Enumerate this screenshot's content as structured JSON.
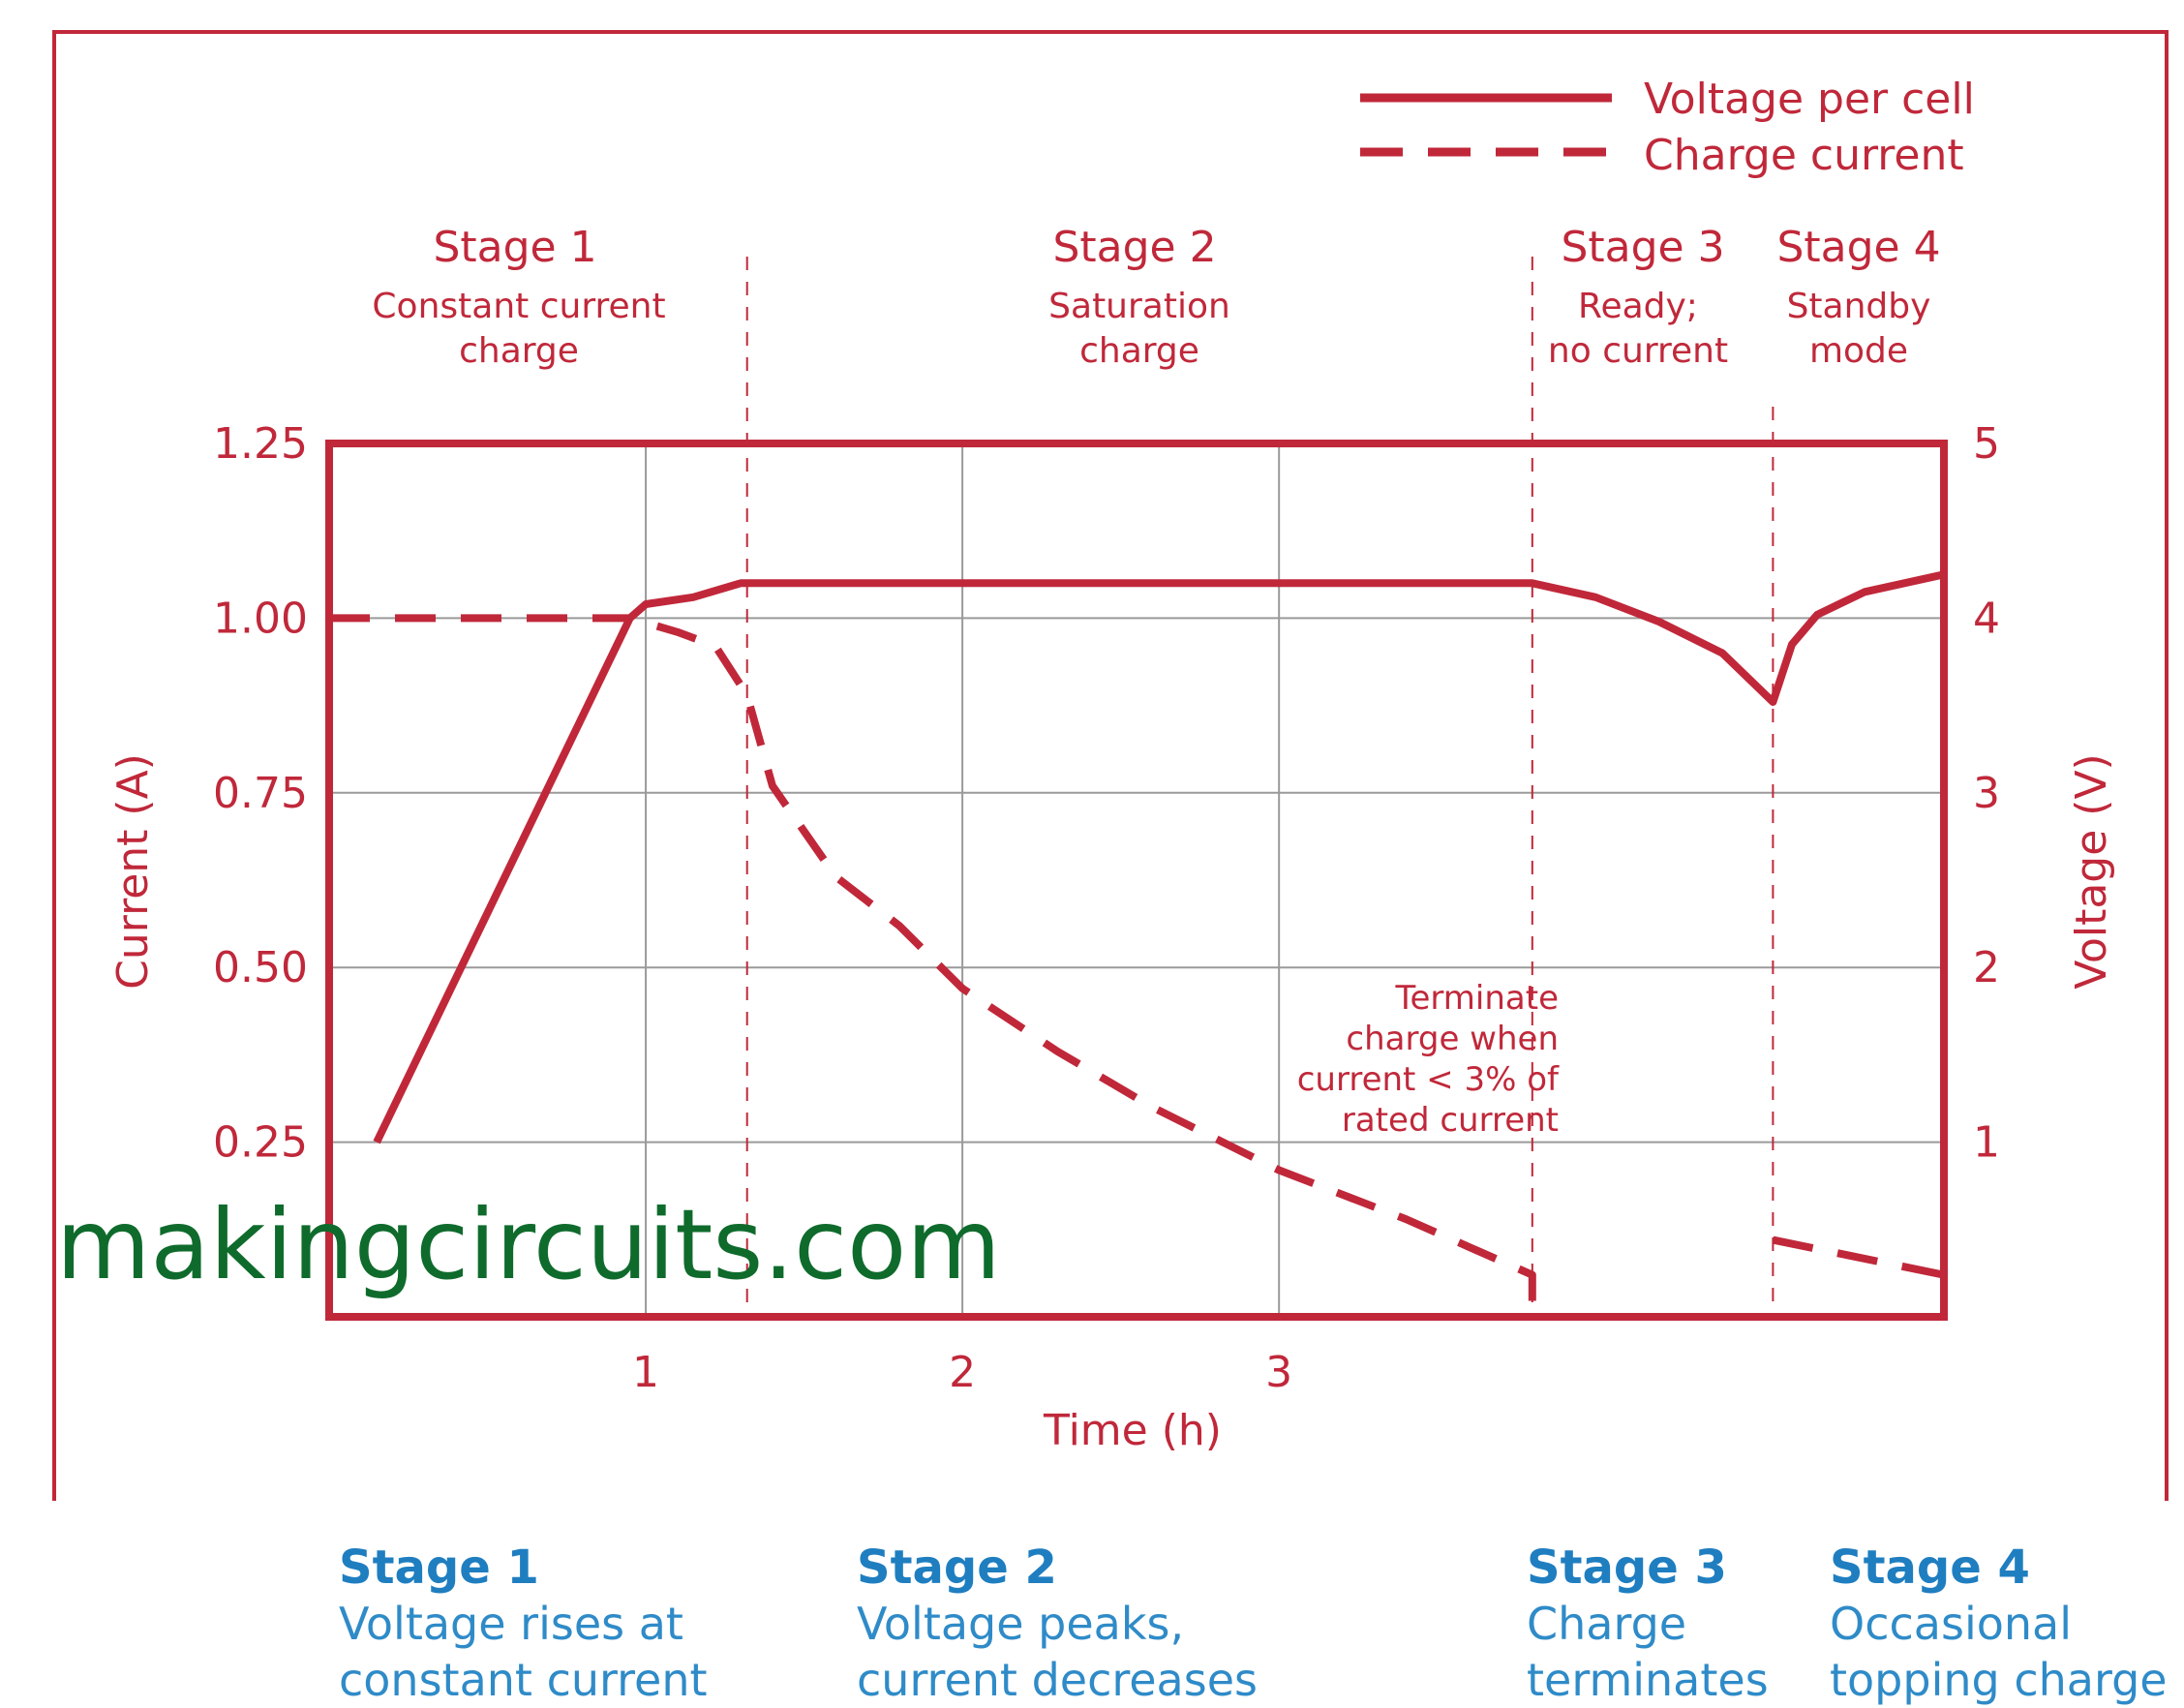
{
  "chart_data": {
    "type": "line",
    "title": "",
    "xlabel": "Time (h)",
    "ylabel_left": "Current (A)",
    "ylabel_right": "Voltage (V)",
    "xlim": [
      0,
      5.1
    ],
    "ylim_left": [
      0,
      1.25
    ],
    "ylim_right": [
      0,
      5
    ],
    "x_ticks": [
      1,
      2,
      3
    ],
    "y_ticks_left": [
      "0.25",
      "0.50",
      "0.75",
      "1.00",
      "1.25"
    ],
    "y_ticks_right": [
      "1",
      "2",
      "3",
      "4",
      "5"
    ],
    "grid": true,
    "legend": {
      "position": "top-right",
      "entries": [
        "Voltage per cell",
        "Charge current"
      ]
    },
    "series": [
      {
        "name": "Voltage per cell",
        "axis": "right",
        "style": "solid",
        "points": [
          [
            0.15,
            1.0
          ],
          [
            0.95,
            4.0
          ],
          [
            1.0,
            4.08
          ],
          [
            1.15,
            4.12
          ],
          [
            1.3,
            4.2
          ],
          [
            2.0,
            4.2
          ],
          [
            3.0,
            4.2
          ],
          [
            3.8,
            4.2
          ],
          [
            4.0,
            4.12
          ],
          [
            4.2,
            3.98
          ],
          [
            4.4,
            3.8
          ],
          [
            4.56,
            3.52
          ],
          [
            4.62,
            3.85
          ],
          [
            4.7,
            4.02
          ],
          [
            4.85,
            4.15
          ],
          [
            5.1,
            4.25
          ]
        ]
      },
      {
        "name": "Charge current",
        "axis": "left",
        "style": "dashed",
        "points": [
          [
            0.0,
            1.0
          ],
          [
            0.95,
            1.0
          ],
          [
            1.1,
            0.98
          ],
          [
            1.22,
            0.96
          ],
          [
            1.32,
            0.89
          ],
          [
            1.4,
            0.76
          ],
          [
            1.6,
            0.63
          ],
          [
            1.8,
            0.56
          ],
          [
            2.0,
            0.47
          ],
          [
            2.3,
            0.38
          ],
          [
            2.6,
            0.3
          ],
          [
            3.0,
            0.21
          ],
          [
            3.4,
            0.14
          ],
          [
            3.8,
            0.06
          ],
          [
            3.8,
            0.0
          ]
        ],
        "points_2": [
          [
            4.56,
            0.11
          ],
          [
            5.1,
            0.06
          ]
        ]
      }
    ],
    "stage_dividers": [
      1.32,
      3.8,
      4.56
    ],
    "stages": [
      {
        "title": "Stage 1",
        "desc": [
          "Constant current",
          "charge"
        ]
      },
      {
        "title": "Stage 2",
        "desc": [
          "Saturation",
          "charge"
        ]
      },
      {
        "title": "Stage 3",
        "desc": [
          "Ready;",
          "no current"
        ]
      },
      {
        "title": "Stage 4",
        "desc": [
          "Standby",
          "mode"
        ]
      }
    ],
    "annotation": [
      "Terminate",
      "charge when",
      "current < 3% of",
      "rated current"
    ],
    "colors": {
      "line": "#c0283a",
      "grid": "#9a9a9a",
      "frame": "#c0283a"
    }
  },
  "watermark": "makingcircuits.com",
  "captions": [
    {
      "title": "Stage 1",
      "lines": [
        "Voltage rises at",
        "constant current"
      ]
    },
    {
      "title": "Stage 2",
      "lines": [
        "Voltage peaks,",
        "current decreases"
      ]
    },
    {
      "title": "Stage 3",
      "lines": [
        "Charge",
        "terminates"
      ]
    },
    {
      "title": "Stage 4",
      "lines": [
        "Occasional",
        "topping charge"
      ]
    }
  ]
}
